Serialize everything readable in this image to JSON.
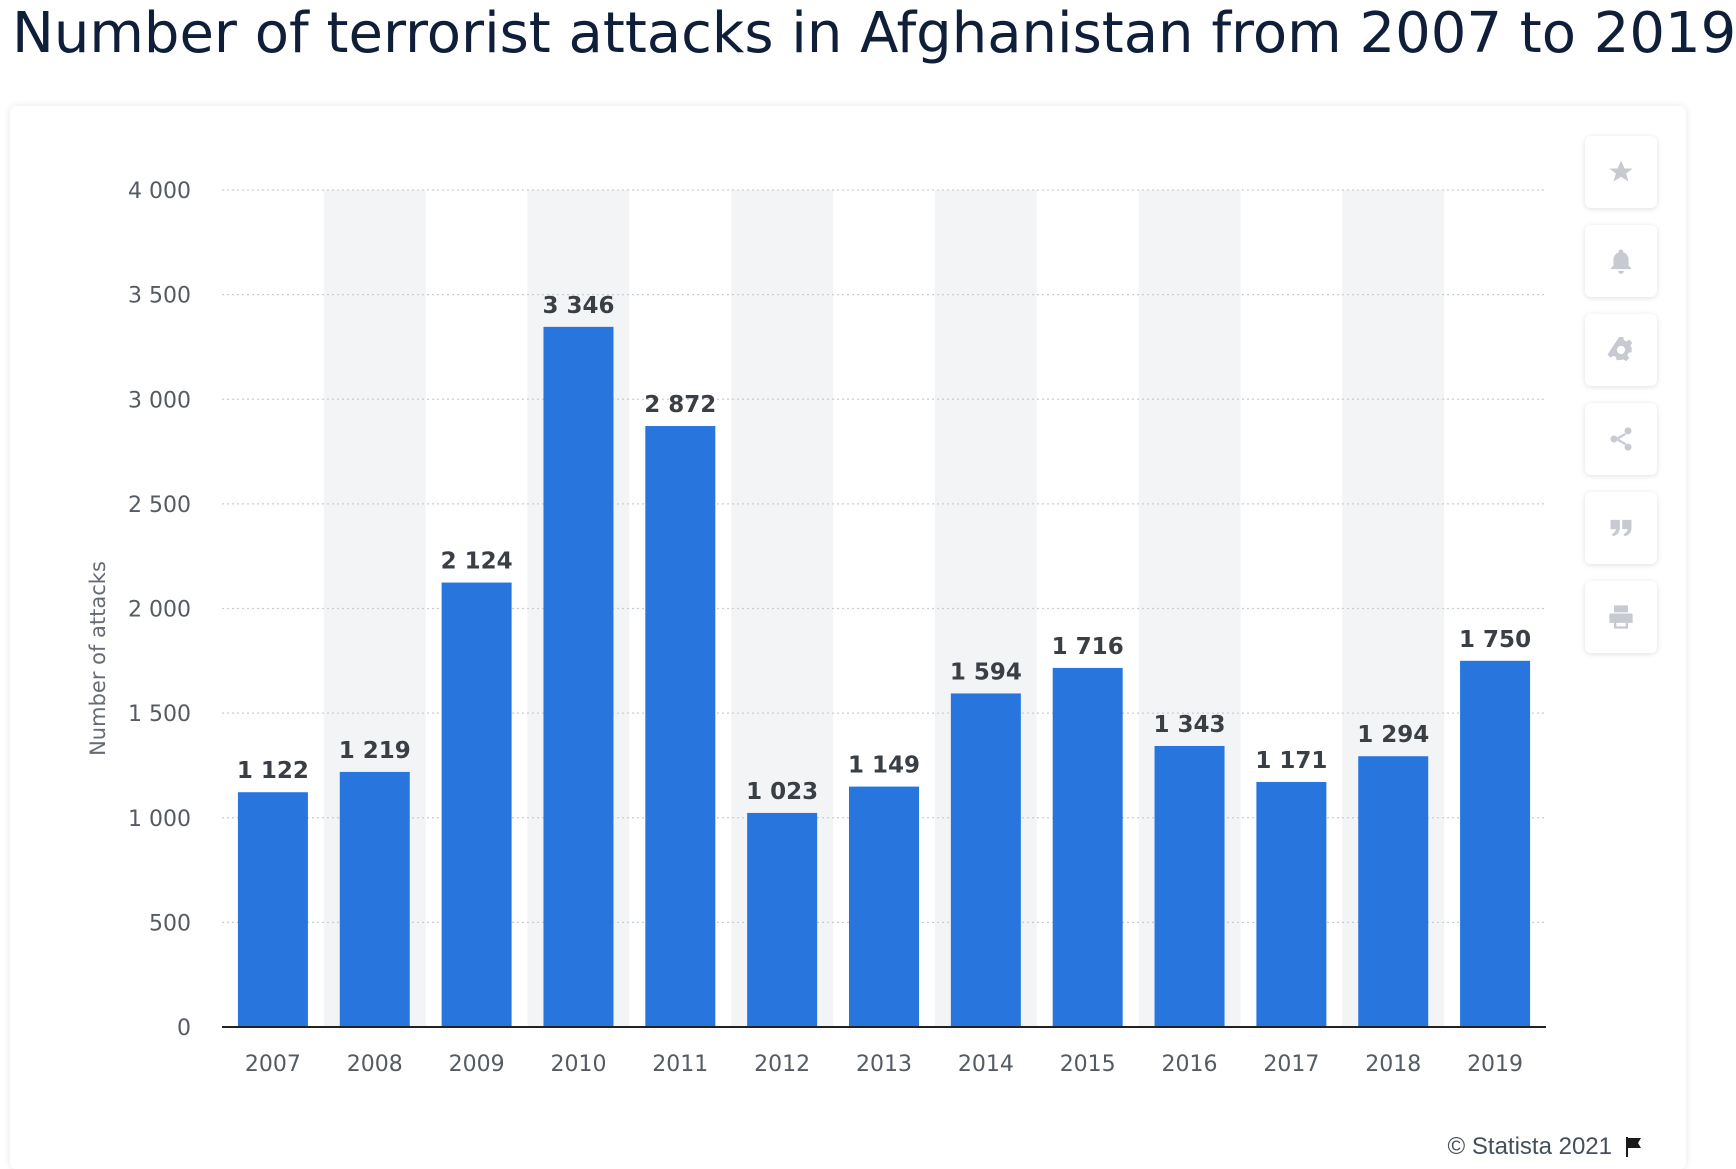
{
  "title": "Number of terrorist attacks in Afghanistan from 2007 to 2019",
  "toolbar": [
    {
      "name": "favorite-button",
      "icon": "star-icon"
    },
    {
      "name": "notification-button",
      "icon": "bell-icon"
    },
    {
      "name": "settings-button",
      "icon": "gear-icon"
    },
    {
      "name": "share-button",
      "icon": "share-icon"
    },
    {
      "name": "cite-button",
      "icon": "quote-icon"
    },
    {
      "name": "print-button",
      "icon": "printer-icon"
    }
  ],
  "footer": {
    "credit": "© Statista 2021",
    "icon": "flag-icon"
  },
  "colors": {
    "bar": "#2876dd",
    "band": "#f3f4f6",
    "grid": "#c9cdd2",
    "axis": "#222222"
  },
  "chart_data": {
    "type": "bar",
    "title": "Number of terrorist attacks in Afghanistan from 2007 to 2019",
    "xlabel": "",
    "ylabel": "Number of attacks",
    "categories": [
      "2007",
      "2008",
      "2009",
      "2010",
      "2011",
      "2012",
      "2013",
      "2014",
      "2015",
      "2016",
      "2017",
      "2018",
      "2019"
    ],
    "values": [
      1122,
      1219,
      2124,
      3346,
      2872,
      1023,
      1149,
      1594,
      1716,
      1343,
      1171,
      1294,
      1750
    ],
    "value_labels": [
      "1 122",
      "1 219",
      "2 124",
      "3 346",
      "2 872",
      "1 023",
      "1 149",
      "1 594",
      "1 716",
      "1 343",
      "1 171",
      "1 294",
      "1 750"
    ],
    "ylim": [
      0,
      4000
    ],
    "yticks": [
      0,
      500,
      1000,
      1500,
      2000,
      2500,
      3000,
      3500,
      4000
    ],
    "ytick_labels": [
      "0",
      "500",
      "1 000",
      "1 500",
      "2 000",
      "2 500",
      "3 000",
      "3 500",
      "4 000"
    ],
    "grid": true,
    "legend": "none"
  }
}
